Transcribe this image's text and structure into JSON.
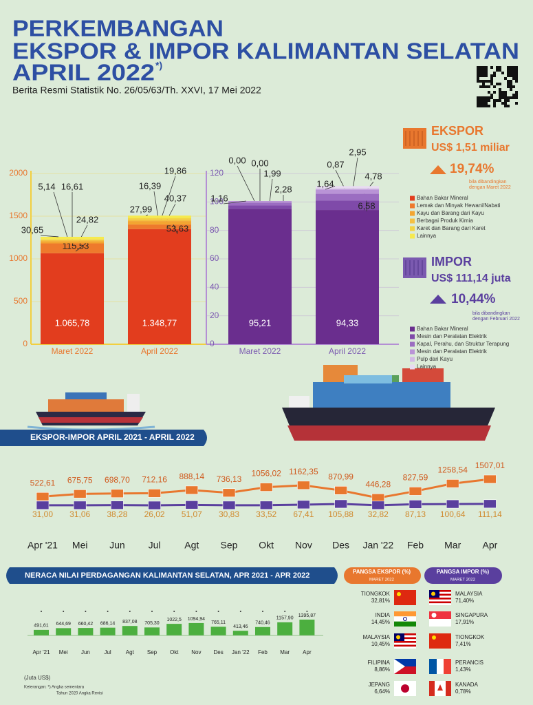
{
  "header": {
    "title_lines": [
      "PERKEMBANGAN",
      "EKSPOR & IMPOR KALIMANTAN SELATAN",
      "APRIL 2022"
    ],
    "title_note": "*)",
    "subtitle": "Berita Resmi Statistik No. 26/05/63/Th. XXVI, 17 Mei 2022"
  },
  "summary": {
    "ekspor": {
      "label": "EKSPOR",
      "value": "US$ 1,51 miliar",
      "change": "19,74%",
      "note": [
        "bila dibandingkan",
        "dengan Maret 2022"
      ]
    },
    "impor": {
      "label": "IMPOR",
      "value": "US$ 111,14 juta",
      "change": "10,44%",
      "note": [
        "bila dibandingkan",
        "dengan Februari 2022"
      ]
    }
  },
  "chart_data": [
    {
      "type": "stacked_bar",
      "categories": [
        "Maret 2022",
        "April 2022"
      ],
      "ylim": [
        0,
        2000
      ],
      "yticks": [
        0,
        500,
        1000,
        1500,
        2000
      ],
      "series": [
        {
          "name": "Bahan Bakar Mineral",
          "color": "#e23d1e",
          "values": [
            1065.78,
            1348.77
          ],
          "value_labels": [
            "1.065,78",
            "1.348,77"
          ]
        },
        {
          "name": "Lemak dan Minyak Hewani/Nabati",
          "color": "#ee7a2c",
          "values": [
            115.53,
            53.63
          ],
          "value_labels": [
            "115,53",
            "53,63"
          ]
        },
        {
          "name": "Kayu dan Barang dari Kayu",
          "color": "#f3a531",
          "values": [
            24.82,
            40.37
          ],
          "value_labels": [
            "24,82",
            "40,37"
          ]
        },
        {
          "name": "Berbagai Produk Kimia",
          "color": "#f5c041",
          "values": [
            16.61,
            19.86
          ],
          "value_labels": [
            "16,61",
            "19,86"
          ]
        },
        {
          "name": "Karet dan Barang dari Karet",
          "color": "#f3d443",
          "values": [
            5.14,
            16.39
          ],
          "value_labels": [
            "5,14",
            "16,39"
          ]
        },
        {
          "name": "Lainnya",
          "color": "#f6ea4e",
          "values": [
            30.65,
            27.99
          ],
          "value_labels": [
            "30,65",
            "27,99"
          ]
        }
      ]
    },
    {
      "type": "stacked_bar",
      "categories": [
        "Maret 2022",
        "April 2022"
      ],
      "ylim": [
        0,
        120
      ],
      "yticks": [
        0,
        20,
        40,
        60,
        80,
        100,
        120
      ],
      "series": [
        {
          "name": "Bahan Bakar Mineral",
          "color": "#6a2e8e",
          "values": [
            95.21,
            94.33
          ],
          "value_labels": [
            "95,21",
            "94,33"
          ]
        },
        {
          "name": "Mesin dan Peralatan Elektrik",
          "color": "#7f4aa9",
          "values": [
            2.28,
            6.58
          ],
          "value_labels": [
            "2,28",
            "6,58"
          ]
        },
        {
          "name": "Kapal, Perahu, dan Struktur Terapung",
          "color": "#9b6dc1",
          "values": [
            1.99,
            4.78
          ],
          "value_labels": [
            "1,99",
            "4,78"
          ]
        },
        {
          "name": "Mesin dan Peralatan Elektrik",
          "color": "#b993d6",
          "values": [
            1.16,
            2.95
          ],
          "value_labels": [
            "1,16",
            "2,95"
          ]
        },
        {
          "name": "Pulp dari Kayu",
          "color": "#d2b9e6",
          "values": [
            0.0,
            0.87
          ],
          "value_labels": [
            "0,00",
            "0,87"
          ]
        },
        {
          "name": "Lainnya",
          "color": "#e8dbf1",
          "values": [
            0.0,
            1.64
          ],
          "value_labels": [
            "0,00",
            "1,64"
          ]
        }
      ]
    },
    {
      "type": "line",
      "title": "EKSPOR-IMPOR APRIL 2021 - APRIL 2022",
      "categories": [
        "Apr '21",
        "Mei",
        "Jun",
        "Jul",
        "Agt",
        "Sep",
        "Okt",
        "Nov",
        "Des",
        "Jan '22",
        "Feb",
        "Mar",
        "Apr"
      ],
      "series": [
        {
          "color": "#e8772e",
          "values": [
            522.61,
            675.75,
            698.7,
            712.16,
            888.14,
            736.13,
            1056.02,
            1162.35,
            870.99,
            446.28,
            827.59,
            1258.54,
            1507.01
          ],
          "value_labels": [
            "522,61",
            "675,75",
            "698,70",
            "712,16",
            "888,14",
            "736,13",
            "1056,02",
            "1162,35",
            "870,99",
            "446,28",
            "827,59",
            "1258,54",
            "1507,01"
          ]
        },
        {
          "color": "#5a3f9e",
          "values": [
            31.0,
            31.06,
            38.28,
            26.02,
            51.07,
            30.83,
            33.52,
            67.41,
            105.88,
            32.82,
            87.13,
            100.64,
            111.14
          ],
          "value_labels": [
            "31,00",
            "31,06",
            "38,28",
            "26,02",
            "51,07",
            "30,83",
            "33,52",
            "67,41",
            "105,88",
            "32,82",
            "87,13",
            "100,64",
            "111,14"
          ]
        }
      ]
    },
    {
      "type": "bar",
      "title": "NERACA NILAI PERDAGANGAN KALIMANTAN SELATAN, APR 2021 - APR 2022",
      "color": "#4caf3f",
      "categories": [
        "Apr '21",
        "Mei",
        "Jun",
        "Jul",
        "Agt",
        "Sep",
        "Okt",
        "Nov",
        "Des",
        "Jan '22",
        "Feb",
        "Mar",
        "Apr"
      ],
      "values": [
        491.61,
        644.69,
        660.42,
        686.14,
        837.08,
        705.3,
        1022.5,
        1094.94,
        765.11,
        413.46,
        740.46,
        1157.9,
        1395.87
      ],
      "value_labels": [
        "491,61",
        "644,69",
        "660,42",
        "686,14",
        "837,08",
        "705,30",
        "1022,5",
        "1094,94",
        "765,11",
        "413,46",
        "740,46",
        "1157,90",
        "1395,87"
      ]
    }
  ],
  "partners": {
    "ekspor": {
      "title": "PANGSA EKSPOR (%)",
      "period": "MARET 2022",
      "rows": [
        {
          "country": "TIONGKOK",
          "share": "32,81%"
        },
        {
          "country": "INDIA",
          "share": "14,45%"
        },
        {
          "country": "MALAYSIA",
          "share": "10,45%"
        },
        {
          "country": "FILIPINA",
          "share": "8,86%"
        },
        {
          "country": "JEPANG",
          "share": "6,64%"
        }
      ]
    },
    "impor": {
      "title": "PANGSA IMPOR (%)",
      "period": "MARET 2022",
      "rows": [
        {
          "country": "MALAYSIA",
          "share": "71,40%"
        },
        {
          "country": "SINGAPURA",
          "share": "17,91%"
        },
        {
          "country": "TIONGKOK",
          "share": "7,41%"
        },
        {
          "country": "PERANCIS",
          "share": "1,43%"
        },
        {
          "country": "KANADA",
          "share": "0,78%"
        }
      ]
    }
  },
  "footer": {
    "unit": "(Juta US$)",
    "notes": [
      "Keterangan: *) Angka sementara",
      "Tahun 2020 Angka Revisi"
    ]
  }
}
